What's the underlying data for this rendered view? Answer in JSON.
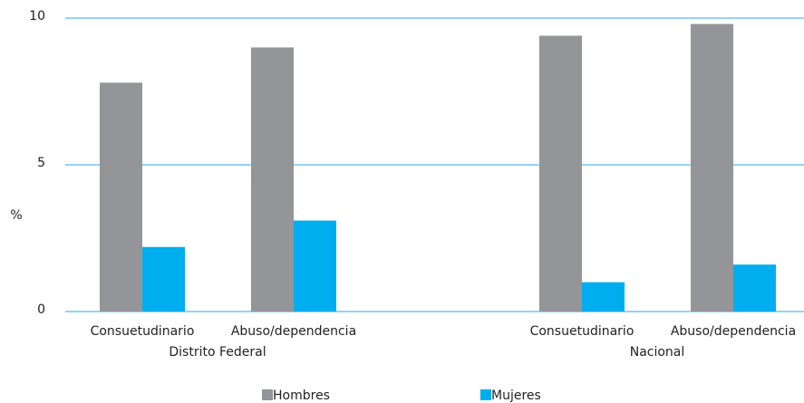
{
  "chart_data": {
    "type": "bar",
    "y_label": "%",
    "groups": [
      {
        "name": "Distrito Federal",
        "categories": [
          "Consuetudinario",
          "Abuso/dependencia"
        ]
      },
      {
        "name": "Nacional",
        "categories": [
          "Consuetudinario",
          "Abuso/dependencia"
        ]
      }
    ],
    "series": [
      {
        "name": "Hombres",
        "color": "#939598",
        "values": [
          7.8,
          9.0,
          9.4,
          9.8
        ]
      },
      {
        "name": "Mujeres",
        "color": "#00aeef",
        "values": [
          2.2,
          3.1,
          1.0,
          1.6
        ]
      }
    ],
    "ylim": [
      0,
      10
    ],
    "yticks": [
      0,
      5,
      10
    ],
    "grid": true,
    "grid_color": "#29a9e0",
    "legend": "bottom"
  }
}
